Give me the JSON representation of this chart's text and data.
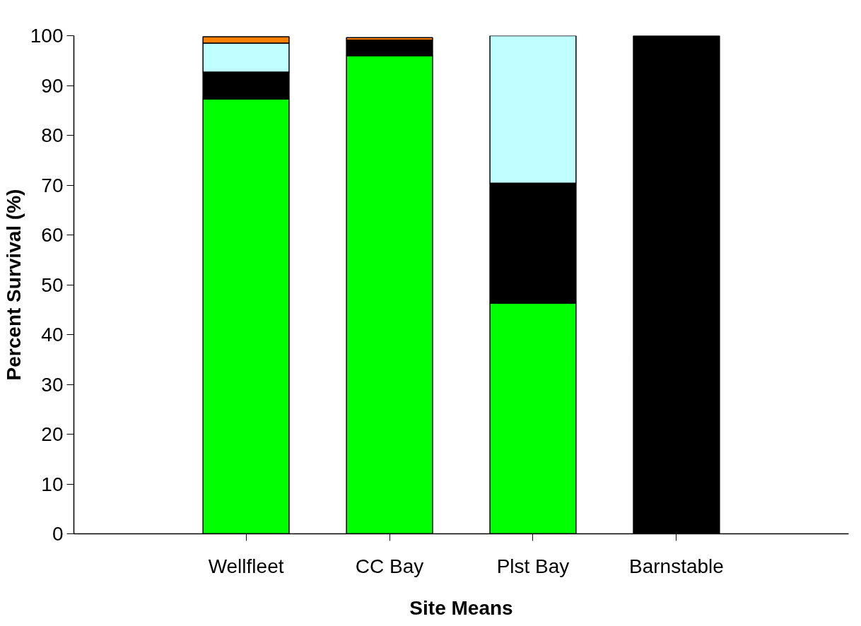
{
  "chart_data": {
    "type": "bar",
    "stacked": true,
    "xlabel": "Site Means",
    "ylabel": "Percent Survival (%)",
    "categories": [
      "Wellfleet",
      "CC Bay",
      "Plst Bay",
      "Barnstable"
    ],
    "series": [
      {
        "color": "#00ff00",
        "values": [
          87.3,
          96.0,
          46.3,
          0
        ]
      },
      {
        "color": "#000000",
        "values": [
          5.4,
          3.1,
          24.1,
          100
        ]
      },
      {
        "color": "#c0ffff",
        "values": [
          5.8,
          0,
          29.6,
          0
        ]
      },
      {
        "color": "#ff8000",
        "values": [
          1.3,
          0.5,
          0,
          0
        ]
      }
    ],
    "ylim": [
      0,
      100
    ],
    "yticks": [
      0,
      10,
      20,
      30,
      40,
      50,
      60,
      70,
      80,
      90,
      100
    ],
    "grid": false
  }
}
